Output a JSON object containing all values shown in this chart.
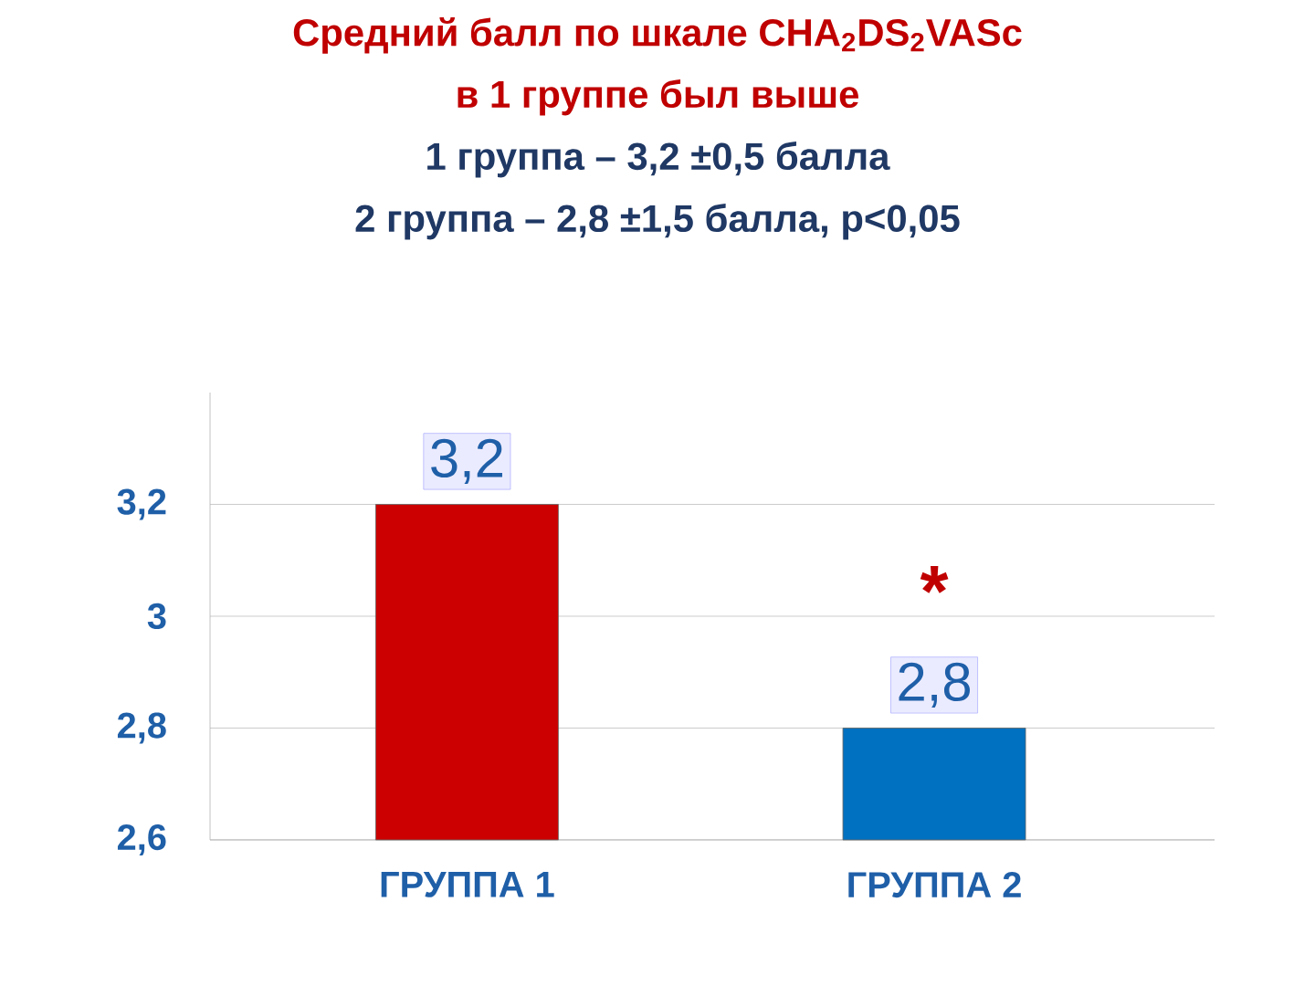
{
  "chart_data": {
    "type": "bar",
    "title": "Средний балл по шкале CHA$_{2}$DS$_{2}$VASc",
    "subtitle": "в 1 группе был выше",
    "annotations": [
      "1 группа – 3,2 ±0,5 балла",
      "2 группа – 2,8 ±1,5 балла, p<0,05",
      "*"
    ],
    "categories": [
      "ГРУППА 1",
      "ГРУППА 2"
    ],
    "values": [
      3.2,
      2.8
    ],
    "colors": [
      "#cc0000",
      "#0070c0"
    ],
    "value_labels": [
      "3,2",
      "2,8"
    ],
    "ylim": [
      2.6,
      3.4
    ],
    "yticks": [
      {
        "value": 2.6,
        "label": "2,6"
      },
      {
        "value": 2.8,
        "label": "2,8"
      },
      {
        "value": 3,
        "label": "3"
      },
      {
        "value": 3.2,
        "label": "3,2"
      }
    ],
    "grid": "y"
  }
}
